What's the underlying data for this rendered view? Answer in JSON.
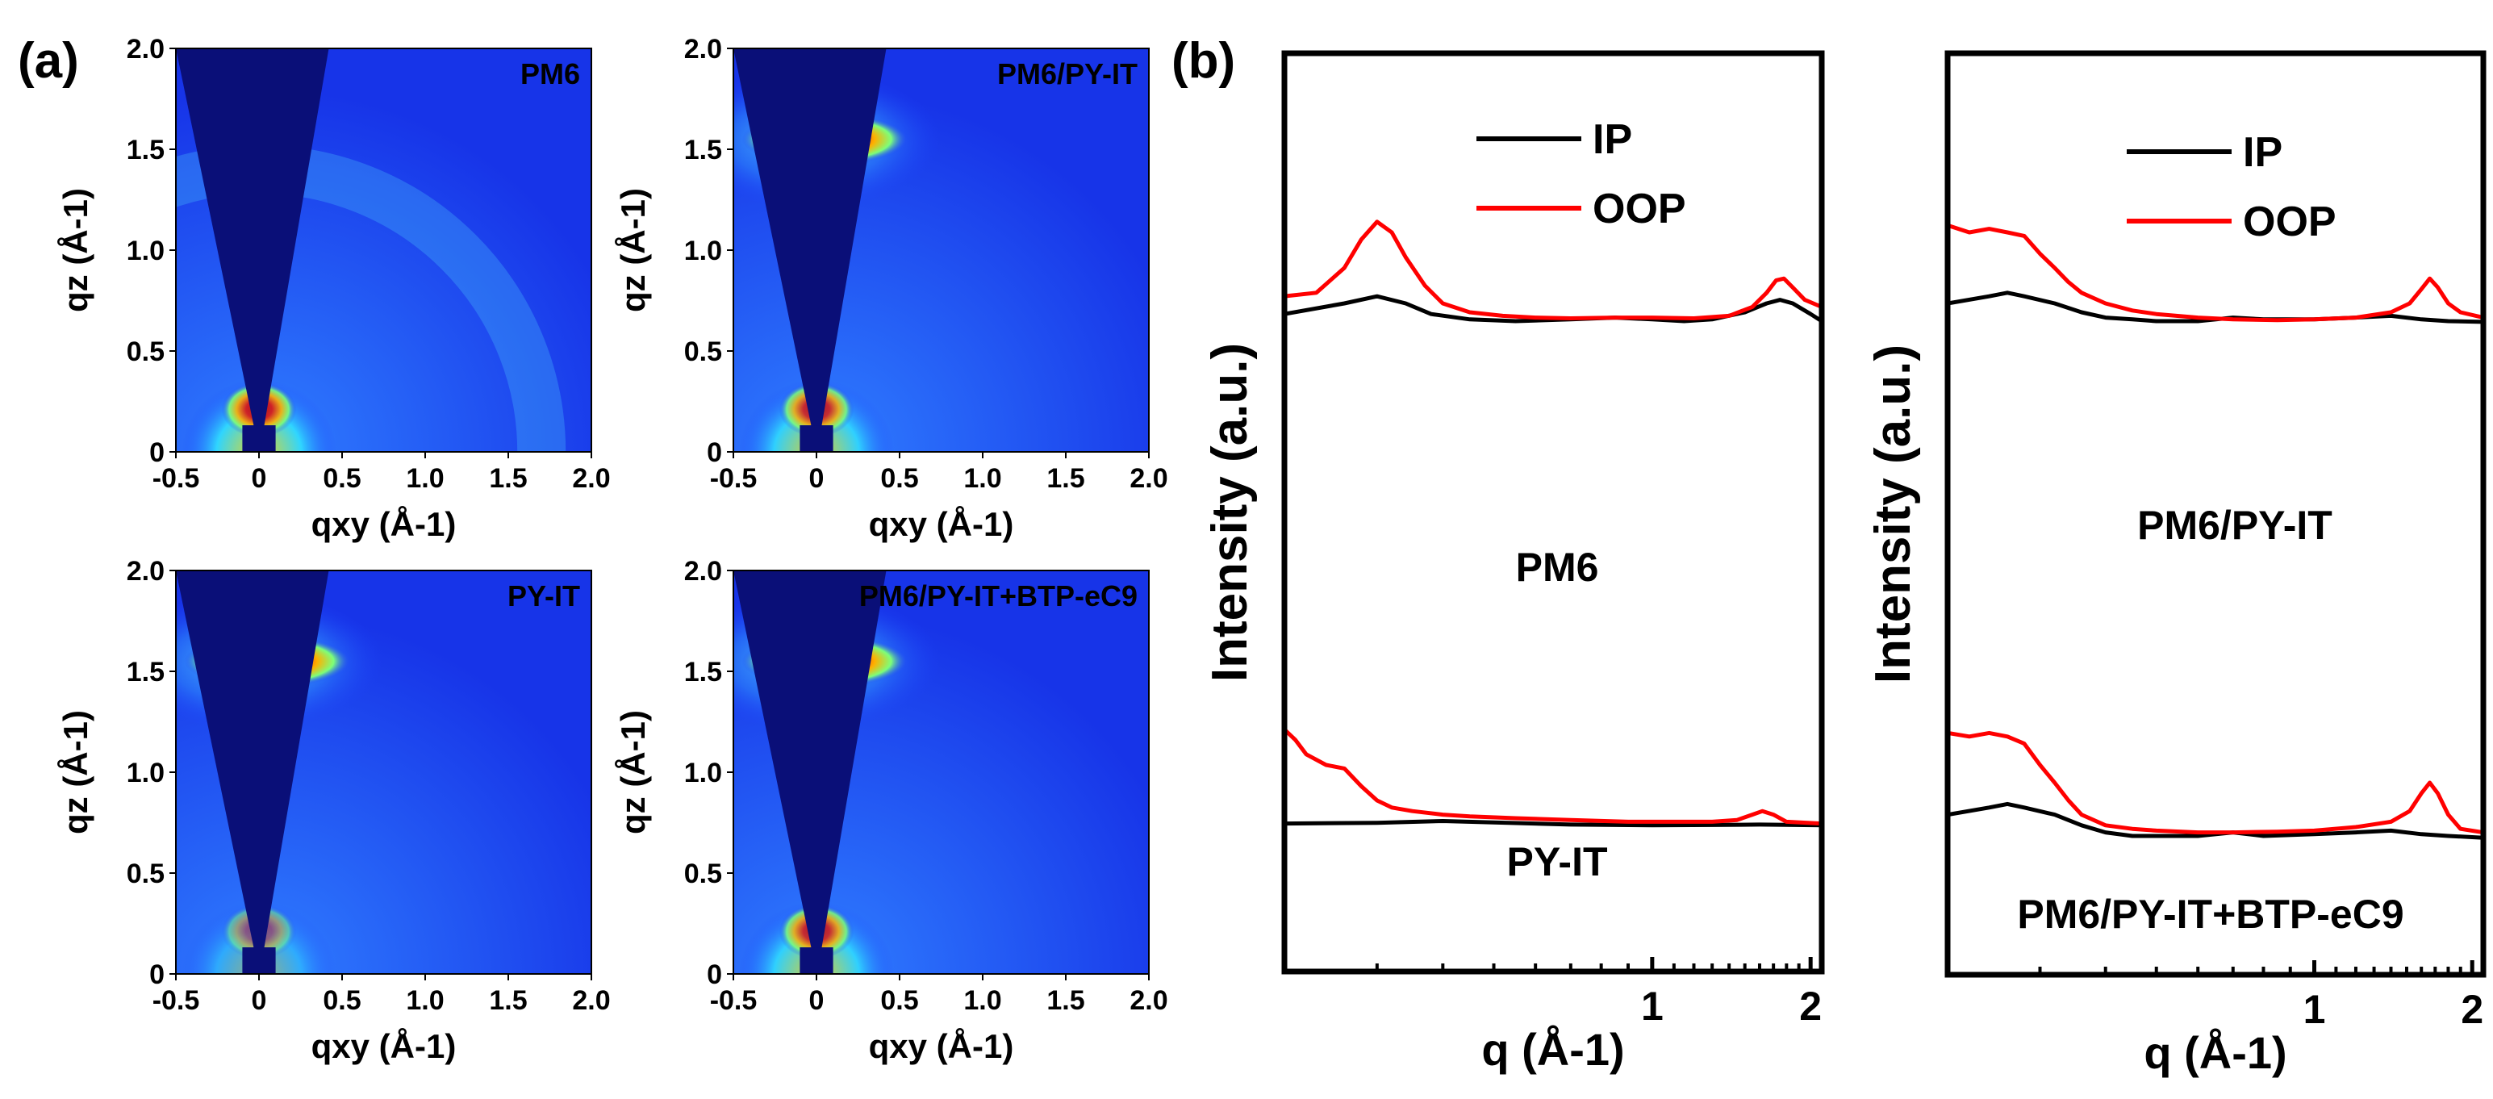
{
  "figure": {
    "panel_a_label": "(a)",
    "panel_b_label": "(b)"
  },
  "colors": {
    "ip": "#000000",
    "oop": "#ff0000",
    "map_background": "#1d3fff",
    "beamstop": "#0a0f78",
    "frame": "#000000"
  },
  "chart_data": [
    {
      "type": "heatmap",
      "title": "PM6",
      "xlabel": "qxy (Å-1)",
      "ylabel": "qz (Å-1)",
      "x_ticks": [
        "-0.5",
        "0",
        "0.5",
        "1.0",
        "1.5",
        "2.0"
      ],
      "y_ticks": [
        "0",
        "0.5",
        "1.0",
        "1.5",
        "2.0"
      ],
      "xlim": [
        -0.5,
        2.0
      ],
      "ylim": [
        0,
        2.0
      ],
      "features": [
        {
          "kind": "lamellar-arc",
          "q": 0.3,
          "intensity": 0.9
        },
        {
          "kind": "pi-stacking-halo",
          "q": 1.7,
          "intensity": 0.4
        }
      ]
    },
    {
      "type": "heatmap",
      "title": "PM6/PY-IT",
      "xlabel": "qxy (Å-1)",
      "ylabel": "qz (Å-1)",
      "x_ticks": [
        "-0.5",
        "0",
        "0.5",
        "1.0",
        "1.5",
        "2.0"
      ],
      "y_ticks": [
        "0",
        "0.5",
        "1.0",
        "1.5",
        "2.0"
      ],
      "xlim": [
        -0.5,
        2.0
      ],
      "ylim": [
        0,
        2.0
      ],
      "features": [
        {
          "kind": "lamellar-arc",
          "q": 0.3,
          "intensity": 0.85
        },
        {
          "kind": "pi-stacking-spot",
          "q": 1.55,
          "intensity": 1.0
        }
      ]
    },
    {
      "type": "heatmap",
      "title": "PY-IT",
      "xlabel": "qxy (Å-1)",
      "ylabel": "qz (Å-1)",
      "x_ticks": [
        "-0.5",
        "0",
        "0.5",
        "1.0",
        "1.5",
        "2.0"
      ],
      "y_ticks": [
        "0",
        "0.5",
        "1.0",
        "1.5",
        "2.0"
      ],
      "xlim": [
        -0.5,
        2.0
      ],
      "ylim": [
        0,
        2.0
      ],
      "features": [
        {
          "kind": "lamellar-arc",
          "q": 0.3,
          "intensity": 0.5
        },
        {
          "kind": "pi-stacking-spot",
          "q": 1.55,
          "intensity": 1.0
        }
      ]
    },
    {
      "type": "heatmap",
      "title": "PM6/PY-IT+BTP-eC9",
      "xlabel": "qxy (Å-1)",
      "ylabel": "qz (Å-1)",
      "x_ticks": [
        "-0.5",
        "0",
        "0.5",
        "1.0",
        "1.5",
        "2.0"
      ],
      "y_ticks": [
        "0",
        "0.5",
        "1.0",
        "1.5",
        "2.0"
      ],
      "xlim": [
        -0.5,
        2.0
      ],
      "ylim": [
        0,
        2.0
      ],
      "features": [
        {
          "kind": "lamellar-arc",
          "q": 0.3,
          "intensity": 0.85
        },
        {
          "kind": "pi-stacking-spot",
          "q": 1.55,
          "intensity": 1.0
        }
      ]
    },
    {
      "type": "line",
      "title": "",
      "xlabel": "q (Å-1)",
      "ylabel": "Intensity (a.u.)",
      "x_scale": "log",
      "xlim": [
        0.2,
        2.1
      ],
      "x_ticks": [
        "1",
        "2"
      ],
      "legend": [
        "IP",
        "OOP"
      ],
      "groups": [
        {
          "label": "PM6",
          "series": [
            {
              "name": "IP",
              "x": [
                0.2,
                0.26,
                0.3,
                0.34,
                0.38,
                0.45,
                0.55,
                0.7,
                0.85,
                1.0,
                1.15,
                1.3,
                1.5,
                1.65,
                1.75,
                1.85,
                2.0,
                2.1
              ],
              "y": [
                0.57,
                0.6,
                0.62,
                0.6,
                0.57,
                0.555,
                0.55,
                0.555,
                0.56,
                0.555,
                0.55,
                0.555,
                0.575,
                0.6,
                0.61,
                0.6,
                0.57,
                0.55
              ]
            },
            {
              "name": "OOP",
              "x": [
                0.2,
                0.23,
                0.26,
                0.28,
                0.3,
                0.32,
                0.34,
                0.37,
                0.4,
                0.45,
                0.52,
                0.6,
                0.7,
                0.85,
                1.0,
                1.2,
                1.4,
                1.55,
                1.65,
                1.72,
                1.78,
                1.85,
                1.95,
                2.1
              ],
              "y": [
                0.62,
                0.63,
                0.7,
                0.78,
                0.83,
                0.8,
                0.73,
                0.65,
                0.6,
                0.575,
                0.565,
                0.56,
                0.558,
                0.56,
                0.56,
                0.558,
                0.565,
                0.59,
                0.63,
                0.665,
                0.67,
                0.645,
                0.61,
                0.59
              ]
            }
          ]
        },
        {
          "label": "PY-IT",
          "series": [
            {
              "name": "IP",
              "x": [
                0.2,
                0.3,
                0.4,
                0.5,
                0.7,
                1.0,
                1.3,
                1.6,
                2.1
              ],
              "y": [
                0.135,
                0.137,
                0.142,
                0.138,
                0.132,
                0.13,
                0.131,
                0.132,
                0.13
              ]
            },
            {
              "name": "OOP",
              "x": [
                0.2,
                0.21,
                0.22,
                0.24,
                0.26,
                0.28,
                0.3,
                0.32,
                0.35,
                0.4,
                0.45,
                0.55,
                0.7,
                0.9,
                1.1,
                1.3,
                1.45,
                1.55,
                1.62,
                1.7,
                1.8,
                2.1
              ],
              "y": [
                0.4,
                0.37,
                0.33,
                0.3,
                0.29,
                0.24,
                0.2,
                0.18,
                0.17,
                0.16,
                0.155,
                0.15,
                0.145,
                0.14,
                0.14,
                0.14,
                0.145,
                0.16,
                0.17,
                0.16,
                0.14,
                0.135
              ]
            }
          ]
        }
      ]
    },
    {
      "type": "line",
      "title": "",
      "xlabel": "q (Å-1)",
      "ylabel": "Intensity (a.u.)",
      "x_scale": "log",
      "xlim": [
        0.2,
        2.1
      ],
      "x_ticks": [
        "1",
        "2"
      ],
      "legend": [
        "IP",
        "OOP"
      ],
      "groups": [
        {
          "label": "PM6/PY-IT",
          "series": [
            {
              "name": "IP",
              "x": [
                0.2,
                0.24,
                0.26,
                0.28,
                0.32,
                0.36,
                0.4,
                0.45,
                0.5,
                0.6,
                0.7,
                0.8,
                1.0,
                1.2,
                1.4,
                1.6,
                1.8,
                2.1
              ],
              "y": [
                0.6,
                0.62,
                0.63,
                0.62,
                0.6,
                0.575,
                0.56,
                0.555,
                0.55,
                0.55,
                0.56,
                0.555,
                0.555,
                0.56,
                0.565,
                0.555,
                0.55,
                0.548
              ]
            },
            {
              "name": "OOP",
              "x": [
                0.2,
                0.22,
                0.24,
                0.26,
                0.28,
                0.3,
                0.32,
                0.34,
                0.36,
                0.4,
                0.45,
                0.5,
                0.6,
                0.7,
                0.85,
                1.0,
                1.2,
                1.4,
                1.52,
                1.6,
                1.66,
                1.72,
                1.8,
                1.9,
                2.1
              ],
              "y": [
                0.82,
                0.8,
                0.81,
                0.8,
                0.79,
                0.74,
                0.7,
                0.66,
                0.63,
                0.6,
                0.58,
                0.57,
                0.56,
                0.555,
                0.553,
                0.555,
                0.56,
                0.575,
                0.6,
                0.64,
                0.67,
                0.645,
                0.6,
                0.575,
                0.56
              ]
            }
          ]
        },
        {
          "label": "PM6/PY-IT+BTP-eC9",
          "series": [
            {
              "name": "IP",
              "x": [
                0.2,
                0.24,
                0.26,
                0.28,
                0.32,
                0.36,
                0.4,
                0.45,
                0.5,
                0.6,
                0.7,
                0.8,
                1.0,
                1.2,
                1.4,
                1.6,
                1.8,
                2.1
              ],
              "y": [
                0.16,
                0.18,
                0.19,
                0.18,
                0.16,
                0.13,
                0.11,
                0.1,
                0.1,
                0.1,
                0.11,
                0.1,
                0.105,
                0.11,
                0.115,
                0.105,
                0.1,
                0.095
              ]
            },
            {
              "name": "OOP",
              "x": [
                0.2,
                0.22,
                0.24,
                0.26,
                0.28,
                0.3,
                0.32,
                0.34,
                0.36,
                0.4,
                0.45,
                0.5,
                0.6,
                0.7,
                0.85,
                1.0,
                1.2,
                1.4,
                1.52,
                1.6,
                1.66,
                1.72,
                1.8,
                1.9,
                2.1
              ],
              "y": [
                0.39,
                0.38,
                0.39,
                0.38,
                0.36,
                0.3,
                0.25,
                0.2,
                0.16,
                0.13,
                0.12,
                0.115,
                0.11,
                0.11,
                0.112,
                0.115,
                0.125,
                0.14,
                0.17,
                0.22,
                0.25,
                0.22,
                0.16,
                0.12,
                0.11
              ]
            }
          ]
        }
      ]
    }
  ]
}
